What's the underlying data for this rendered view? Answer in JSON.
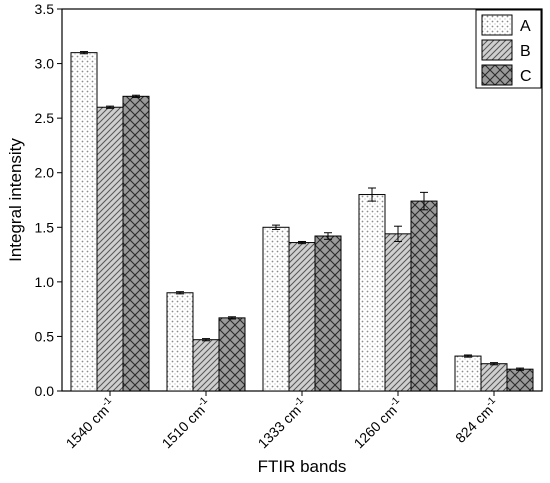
{
  "chart_data": {
    "type": "bar",
    "title": "",
    "xlabel": "FTIR bands",
    "ylabel": "Integral intensity",
    "ylim": [
      0,
      3.5
    ],
    "yticks": [
      "0.0",
      "0.5",
      "1.0",
      "1.5",
      "2.0",
      "2.5",
      "3.0",
      "3.5"
    ],
    "categories": [
      {
        "base": "1540 cm",
        "sup": "-1"
      },
      {
        "base": "1510 cm",
        "sup": "-1"
      },
      {
        "base": "1333 cm",
        "sup": "-1"
      },
      {
        "base": "1260 cm",
        "sup": "-1"
      },
      {
        "base": "824 cm",
        "sup": "-1"
      }
    ],
    "series": [
      {
        "name": "A",
        "pattern": "dotted-vertical",
        "values": [
          3.1,
          0.9,
          1.5,
          1.8,
          0.32
        ],
        "errors": [
          0.01,
          0.01,
          0.02,
          0.06,
          0.01
        ]
      },
      {
        "name": "B",
        "pattern": "diagonal-hatch",
        "values": [
          2.6,
          0.47,
          1.36,
          1.44,
          0.25
        ],
        "errors": [
          0.01,
          0.01,
          0.01,
          0.07,
          0.01
        ]
      },
      {
        "name": "C",
        "pattern": "crosshatch",
        "values": [
          2.7,
          0.67,
          1.42,
          1.74,
          0.2
        ],
        "errors": [
          0.01,
          0.01,
          0.03,
          0.08,
          0.01
        ]
      }
    ],
    "legend_position": "top-right",
    "grid": false
  }
}
